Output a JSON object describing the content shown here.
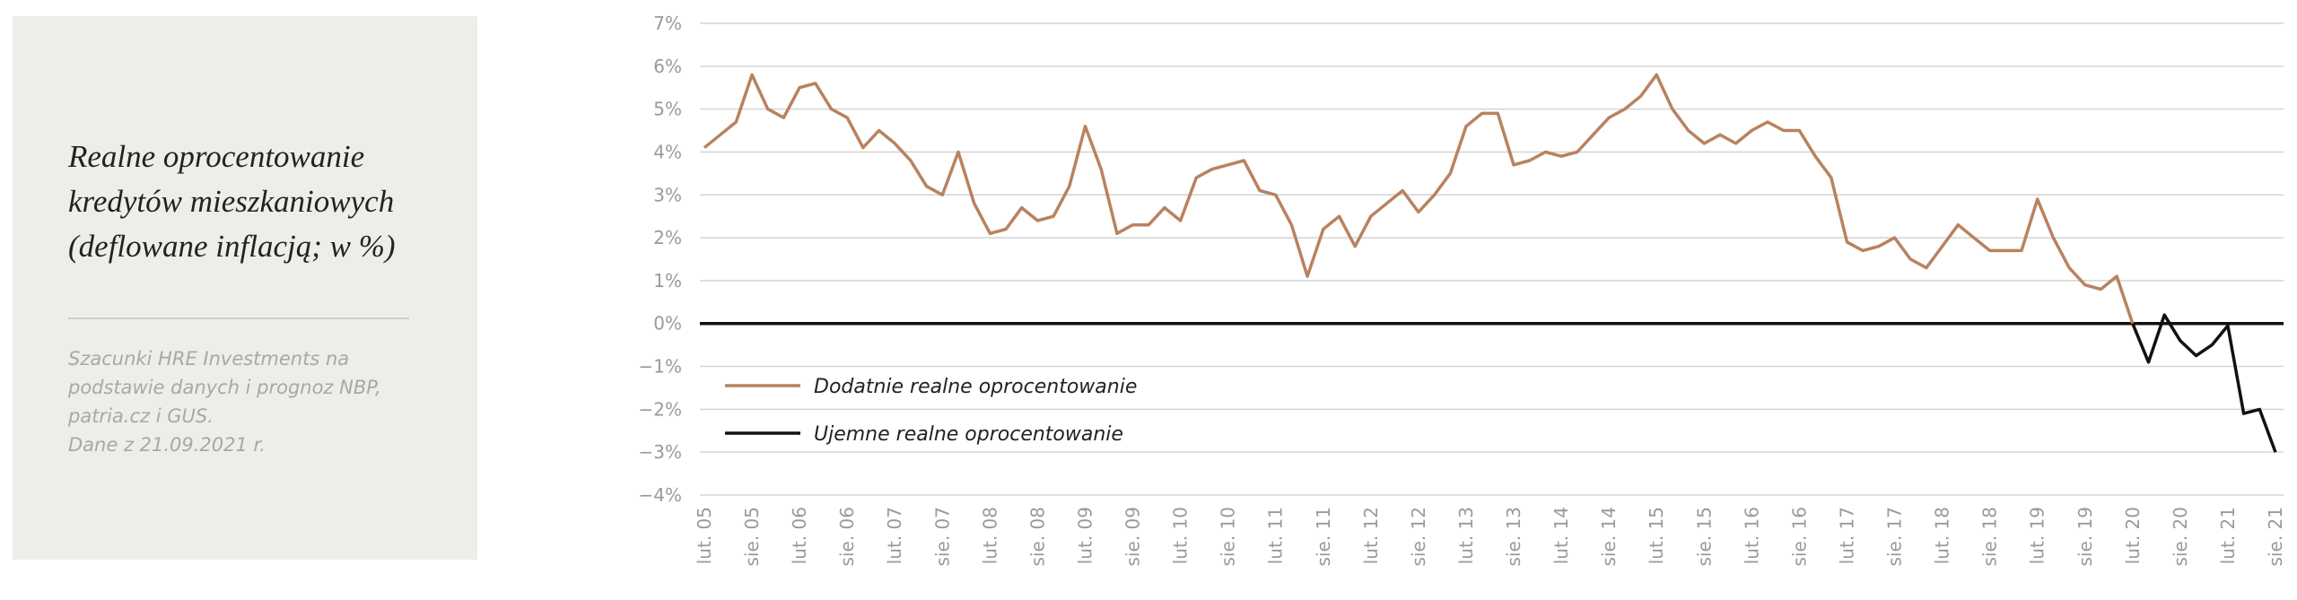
{
  "side_panel": {
    "title": "Realne oprocentowanie kredytów mieszkaniowych (deflowane inflacją; w %)",
    "note": "Szacunki HRE Investments na podstawie danych i prognoz NBP,  patria.cz  i GUS.\nDane z 21.09.2021 r."
  },
  "chart_data": {
    "type": "line",
    "categories": [
      "lut. 05",
      null,
      null,
      "sie. 05",
      null,
      null,
      "lut. 06",
      null,
      null,
      "sie. 06",
      null,
      null,
      "lut. 07",
      null,
      null,
      "sie. 07",
      null,
      null,
      "lut. 08",
      null,
      null,
      "sie. 08",
      null,
      null,
      "lut. 09",
      null,
      null,
      "sie. 09",
      null,
      null,
      "lut. 10",
      null,
      null,
      "sie. 10",
      null,
      null,
      "lut. 11",
      null,
      null,
      "sie. 11",
      null,
      null,
      "lut. 12",
      null,
      null,
      "sie. 12",
      null,
      null,
      "lut. 13",
      null,
      null,
      "sie. 13",
      null,
      null,
      "lut. 14",
      null,
      null,
      "sie. 14",
      null,
      null,
      "lut. 15",
      null,
      null,
      "sie. 15",
      null,
      null,
      "lut. 16",
      null,
      null,
      "sie. 16",
      null,
      null,
      "lut. 17",
      null,
      null,
      "sie. 17",
      null,
      null,
      "lut. 18",
      null,
      null,
      "sie. 18",
      null,
      null,
      "lut. 19",
      null,
      null,
      "sie. 19",
      null,
      null,
      "lut. 20",
      null,
      null,
      "sie. 20",
      null,
      null,
      "lut. 21",
      null,
      null,
      "sie. 21"
    ],
    "series": [
      {
        "name": "Dodatnie realne oprocentowanie",
        "color": "#b9825f",
        "values": [
          4.1,
          4.4,
          4.7,
          5.8,
          5.0,
          4.8,
          5.5,
          5.6,
          5.0,
          4.8,
          4.1,
          4.5,
          4.2,
          3.8,
          3.2,
          3.0,
          4.0,
          2.8,
          2.1,
          2.2,
          2.7,
          2.4,
          2.5,
          3.2,
          4.6,
          3.6,
          2.1,
          2.3,
          2.3,
          2.7,
          2.4,
          3.4,
          3.6,
          3.7,
          3.8,
          3.1,
          3.0,
          2.3,
          1.1,
          2.2,
          2.5,
          1.8,
          2.5,
          2.8,
          3.1,
          2.6,
          3.0,
          3.5,
          4.6,
          4.9,
          4.9,
          3.7,
          3.8,
          4.0,
          3.9,
          4.0,
          4.4,
          4.8,
          5.0,
          5.3,
          5.8,
          5.0,
          4.5,
          4.2,
          4.4,
          4.2,
          4.5,
          4.7,
          4.5,
          4.5,
          3.9,
          3.4,
          1.9,
          1.7,
          1.8,
          2.0,
          1.5,
          1.3,
          1.8,
          2.3,
          2.0,
          1.7,
          1.7,
          1.7,
          2.9,
          2.0,
          1.3,
          0.9,
          0.8,
          1.1,
          0.0,
          null,
          null,
          null,
          null,
          null,
          null,
          null,
          null,
          null
        ]
      },
      {
        "name": "Ujemne realne oprocentowanie",
        "color": "#111111",
        "values": [
          null,
          null,
          null,
          null,
          null,
          null,
          null,
          null,
          null,
          null,
          null,
          null,
          null,
          null,
          null,
          null,
          null,
          null,
          null,
          null,
          null,
          null,
          null,
          null,
          null,
          null,
          null,
          null,
          null,
          null,
          null,
          null,
          null,
          null,
          null,
          null,
          null,
          null,
          null,
          null,
          null,
          null,
          null,
          null,
          null,
          null,
          null,
          null,
          null,
          null,
          null,
          null,
          null,
          null,
          null,
          null,
          null,
          null,
          null,
          null,
          null,
          null,
          null,
          null,
          null,
          null,
          null,
          null,
          null,
          null,
          null,
          null,
          null,
          null,
          null,
          null,
          null,
          null,
          null,
          null,
          null,
          null,
          null,
          null,
          null,
          null,
          null,
          null,
          null,
          null,
          0.0,
          -0.9,
          0.2,
          -0.4,
          -0.75,
          -0.5,
          -0.05,
          -2.1,
          -2.0,
          -3.0
        ]
      }
    ],
    "ylim": [
      -4,
      7
    ],
    "yticks": [
      {
        "value": -4,
        "label": "−4%"
      },
      {
        "value": -3,
        "label": "−3%"
      },
      {
        "value": -2,
        "label": "−2%"
      },
      {
        "value": -1,
        "label": "−1%"
      },
      {
        "value": 0,
        "label": "0%"
      },
      {
        "value": 1,
        "label": "1%"
      },
      {
        "value": 2,
        "label": "2%"
      },
      {
        "value": 3,
        "label": "3%"
      },
      {
        "value": 4,
        "label": "4%"
      },
      {
        "value": 5,
        "label": "5%"
      },
      {
        "value": 6,
        "label": "6%"
      },
      {
        "value": 7,
        "label": "7%"
      }
    ],
    "grid": true,
    "legend": "lower-left"
  }
}
